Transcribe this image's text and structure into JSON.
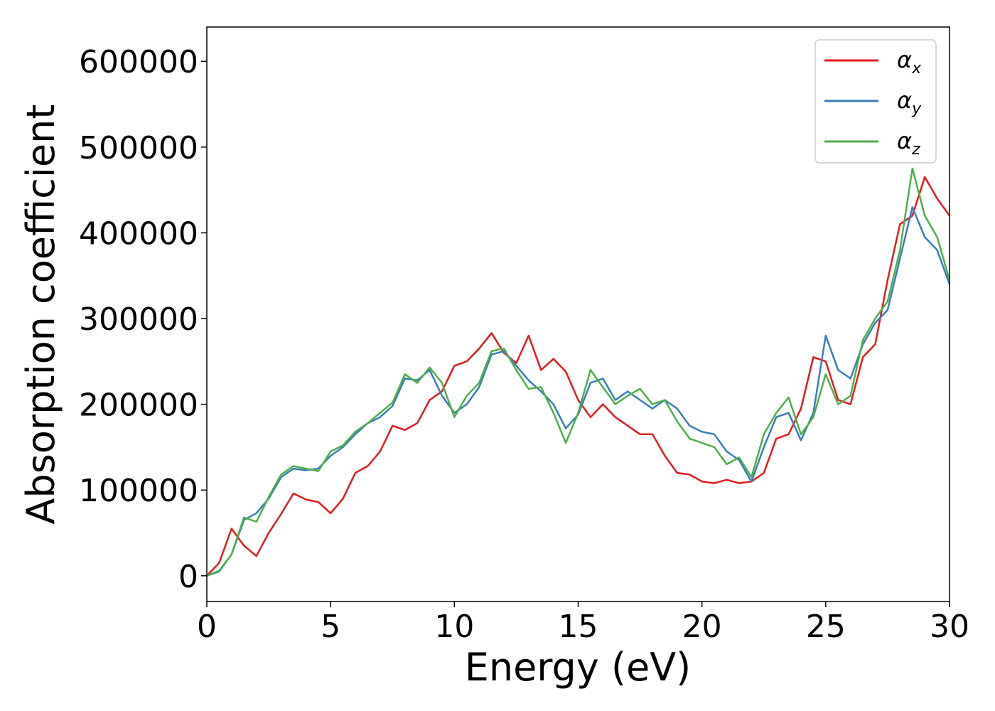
{
  "chart_data": {
    "type": "line",
    "xlabel": "Energy (eV)",
    "ylabel": "Absorption coefficient",
    "xlim": [
      0,
      30
    ],
    "ylim": [
      -30000,
      640000
    ],
    "xticks": [
      "0",
      "5",
      "10",
      "15",
      "20",
      "25",
      "30"
    ],
    "yticks": [
      "0",
      "100000",
      "200000",
      "300000",
      "400000",
      "500000",
      "600000"
    ],
    "legend_position": "top-right",
    "grid": false,
    "series": [
      {
        "name": "α_x",
        "label_main": "α",
        "label_sub": "x",
        "color": "#e41a1c",
        "x": [
          0,
          0.5,
          1.0,
          1.5,
          2.0,
          2.5,
          3.0,
          3.5,
          4.0,
          4.5,
          5.0,
          5.5,
          6.0,
          6.5,
          7.0,
          7.5,
          8.0,
          8.5,
          9.0,
          9.5,
          10.0,
          10.5,
          11.0,
          11.5,
          12.0,
          12.5,
          13.0,
          13.5,
          14.0,
          14.5,
          15.0,
          15.5,
          16.0,
          16.5,
          17.0,
          17.5,
          18.0,
          18.5,
          19.0,
          19.5,
          20.0,
          20.5,
          21.0,
          21.5,
          22.0,
          22.5,
          23.0,
          23.5,
          24.0,
          24.5,
          25.0,
          25.5,
          26.0,
          26.5,
          27.0,
          27.5,
          28.0,
          28.5,
          29.0,
          29.5,
          30.0
        ],
        "values": [
          0,
          15000,
          55000,
          35000,
          23000,
          50000,
          72000,
          96000,
          89000,
          86000,
          73000,
          90000,
          120000,
          128000,
          145000,
          175000,
          170000,
          178000,
          205000,
          215000,
          245000,
          250000,
          265000,
          283000,
          260000,
          248000,
          280000,
          240000,
          253000,
          238000,
          205000,
          185000,
          200000,
          185000,
          175000,
          165000,
          165000,
          140000,
          120000,
          118000,
          110000,
          108000,
          112000,
          108000,
          110000,
          120000,
          160000,
          165000,
          195000,
          255000,
          250000,
          205000,
          200000,
          255000,
          270000,
          345000,
          410000,
          420000,
          465000,
          440000,
          420000
        ]
      },
      {
        "name": "α_y",
        "label_main": "α",
        "label_sub": "y",
        "color": "#377eb8",
        "x": [
          0,
          0.5,
          1.0,
          1.5,
          2.0,
          2.5,
          3.0,
          3.5,
          4.0,
          4.5,
          5.0,
          5.5,
          6.0,
          6.5,
          7.0,
          7.5,
          8.0,
          8.5,
          9.0,
          9.5,
          10.0,
          10.5,
          11.0,
          11.5,
          12.0,
          12.5,
          13.0,
          13.5,
          14.0,
          14.5,
          15.0,
          15.5,
          16.0,
          16.5,
          17.0,
          17.5,
          18.0,
          18.5,
          19.0,
          19.5,
          20.0,
          20.5,
          21.0,
          21.5,
          22.0,
          22.5,
          23.0,
          23.5,
          24.0,
          24.5,
          25.0,
          25.5,
          26.0,
          26.5,
          27.0,
          27.5,
          28.0,
          28.5,
          29.0,
          29.5,
          30.0
        ],
        "values": [
          0,
          5000,
          25000,
          65000,
          73000,
          90000,
          115000,
          125000,
          123000,
          125000,
          140000,
          150000,
          165000,
          178000,
          185000,
          198000,
          230000,
          228000,
          240000,
          210000,
          190000,
          200000,
          220000,
          258000,
          262000,
          245000,
          228000,
          215000,
          200000,
          172000,
          188000,
          225000,
          230000,
          205000,
          215000,
          205000,
          195000,
          205000,
          195000,
          175000,
          168000,
          165000,
          145000,
          135000,
          110000,
          150000,
          185000,
          190000,
          158000,
          190000,
          280000,
          240000,
          230000,
          270000,
          295000,
          310000,
          370000,
          430000,
          395000,
          380000,
          340000
        ]
      },
      {
        "name": "α_z",
        "label_main": "α",
        "label_sub": "z",
        "color": "#4daf4a",
        "x": [
          0,
          0.5,
          1.0,
          1.5,
          2.0,
          2.5,
          3.0,
          3.5,
          4.0,
          4.5,
          5.0,
          5.5,
          6.0,
          6.5,
          7.0,
          7.5,
          8.0,
          8.5,
          9.0,
          9.5,
          10.0,
          10.5,
          11.0,
          11.5,
          12.0,
          12.5,
          13.0,
          13.5,
          14.0,
          14.5,
          15.0,
          15.5,
          16.0,
          16.5,
          17.0,
          17.5,
          18.0,
          18.5,
          19.0,
          19.5,
          20.0,
          20.5,
          21.0,
          21.5,
          22.0,
          22.5,
          23.0,
          23.5,
          24.0,
          24.5,
          25.0,
          25.5,
          26.0,
          26.5,
          27.0,
          27.5,
          28.0,
          28.5,
          29.0,
          29.5,
          30.0
        ],
        "values": [
          0,
          6000,
          25000,
          68000,
          63000,
          92000,
          118000,
          128000,
          125000,
          122000,
          145000,
          152000,
          168000,
          178000,
          190000,
          202000,
          235000,
          225000,
          243000,
          225000,
          185000,
          210000,
          225000,
          262000,
          265000,
          240000,
          218000,
          220000,
          190000,
          155000,
          190000,
          240000,
          220000,
          200000,
          210000,
          218000,
          200000,
          205000,
          180000,
          160000,
          155000,
          150000,
          130000,
          138000,
          115000,
          165000,
          190000,
          208000,
          165000,
          185000,
          235000,
          200000,
          210000,
          275000,
          300000,
          320000,
          380000,
          475000,
          420000,
          395000,
          345000
        ]
      }
    ]
  }
}
